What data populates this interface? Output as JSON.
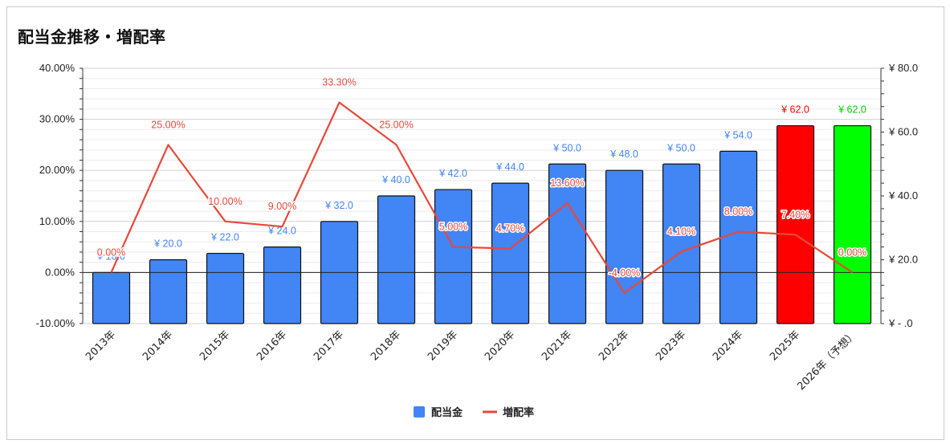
{
  "title": "配当金推移・増配率",
  "colors": {
    "bar": "#4285f4",
    "bar_highlight": "#ff0000",
    "bar_forecast": "#00ff00",
    "line": "#e8483a",
    "bar_label": "#4285f4",
    "label_highlight": "#ff0000",
    "label_forecast": "#00d000"
  },
  "chart_data": {
    "type": "bar",
    "categories": [
      "2013年",
      "2014年",
      "2015年",
      "2016年",
      "2017年",
      "2018年",
      "2019年",
      "2020年",
      "2021年",
      "2022年",
      "2023年",
      "2024年",
      "2025年",
      "2026年（予想）"
    ],
    "series": [
      {
        "name": "配当金",
        "type": "bar",
        "axis": "right",
        "values": [
          16,
          20,
          22,
          24,
          32,
          40,
          42,
          44,
          50,
          48,
          50,
          54,
          62,
          62
        ],
        "labels": [
          "¥ 16.0",
          "¥ 20.0",
          "¥ 22.0",
          "¥ 24.0",
          "¥ 32.0",
          "¥ 40.0",
          "¥ 42.0",
          "¥ 44.0",
          "¥ 50.0",
          "¥ 48.0",
          "¥ 50.0",
          "¥ 54.0",
          "¥ 62.0",
          "¥ 62.0"
        ],
        "colors": [
          "bar",
          "bar",
          "bar",
          "bar",
          "bar",
          "bar",
          "bar",
          "bar",
          "bar",
          "bar",
          "bar",
          "bar",
          "bar_highlight",
          "bar_forecast"
        ]
      },
      {
        "name": "増配率",
        "type": "line",
        "axis": "left",
        "values": [
          0.0,
          25.0,
          10.0,
          9.0,
          33.3,
          25.0,
          5.0,
          4.7,
          13.6,
          -4.0,
          4.1,
          8.0,
          7.4,
          0.0
        ],
        "labels": [
          "0.00%",
          "25.00%",
          "10.00%",
          "9.00%",
          "33.30%",
          "25.00%",
          "5.00%",
          "4.70%",
          "13.60%",
          "-4.00%",
          "4.10%",
          "8.00%",
          "7.40%",
          "0.00%"
        ]
      }
    ],
    "y_left": {
      "min": -10,
      "max": 40,
      "step": 10,
      "ticks": [
        "-10.00%",
        "0.00%",
        "10.00%",
        "20.00%",
        "30.00%",
        "40.00%"
      ]
    },
    "y_right": {
      "min": 0,
      "max": 80,
      "step": 20,
      "ticks": [
        "¥ -  .0",
        "¥ 20.0",
        "¥ 40.0",
        "¥ 60.0",
        "¥ 80.0"
      ]
    },
    "legend": {
      "position": "bottom",
      "items": [
        "配当金",
        "増配率"
      ]
    },
    "grid": true
  }
}
